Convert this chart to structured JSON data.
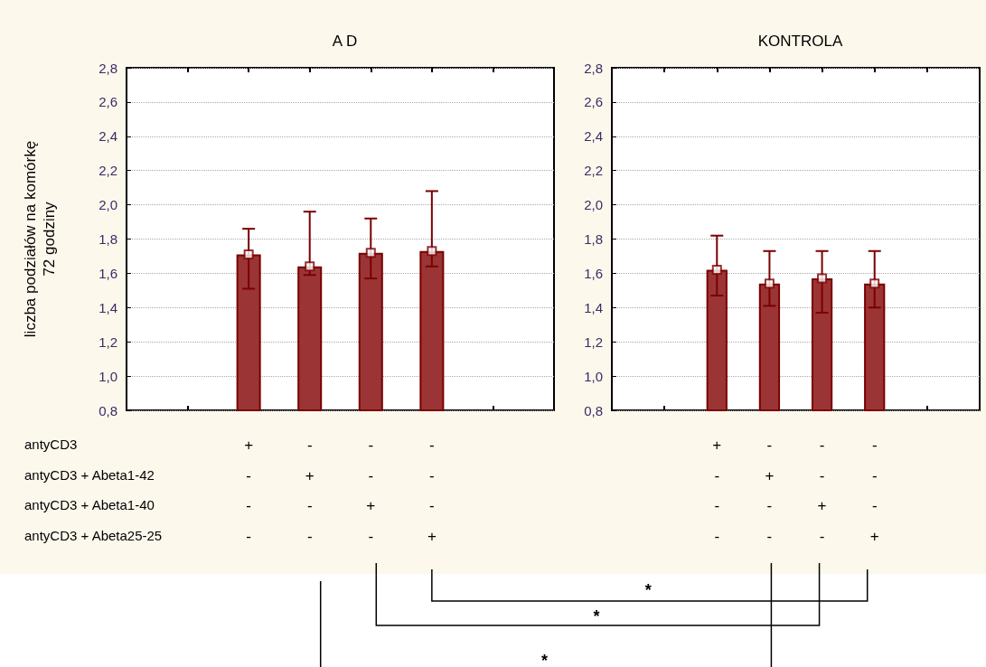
{
  "chart_data": [
    {
      "type": "bar",
      "title": "A D",
      "ylabel": "liczba podziałów na komórkę\n72 godziny",
      "categories": [
        null,
        null,
        "+\n-\n-\n-",
        "-\n+\n-\n-",
        "-\n-\n+\n-",
        "-\n-\n-\n+",
        null,
        null
      ],
      "series": [
        {
          "color": "#9b3535",
          "values": [
            null,
            null,
            1.71,
            1.64,
            1.72,
            1.73,
            null,
            null
          ],
          "errors": [
            null,
            null,
            [
              1.51,
              1.86
            ],
            [
              1.59,
              1.96
            ],
            [
              1.57,
              1.92
            ],
            [
              1.64,
              2.08
            ],
            null,
            null
          ]
        },
        {
          "type": "scatter",
          "color": "#ffffff",
          "marker": "square",
          "x": [
            "+\n-\n-\n-",
            "-\n+\n-\n-",
            "-\n-\n+\n-",
            "-\n-\n-\n+"
          ],
          "values": [
            1.71,
            1.64,
            1.72,
            1.73
          ]
        }
      ],
      "ylim": [
        0.8,
        2.8
      ],
      "yticks": [
        {
          "value": 0.8,
          "label": "0,8"
        },
        {
          "value": 1.0,
          "label": "1,0"
        },
        {
          "value": 1.2,
          "label": "1,2"
        },
        {
          "value": 1.4,
          "label": "1,4"
        },
        {
          "value": 1.6,
          "label": "1,6"
        },
        {
          "value": 1.8,
          "label": "1,8"
        },
        {
          "value": 2.0,
          "label": "2,0"
        },
        {
          "value": 2.2,
          "label": "2,2"
        },
        {
          "value": 2.4,
          "label": "2,4"
        },
        {
          "value": 2.6,
          "label": "2,6"
        },
        {
          "value": 2.8,
          "label": "2,8"
        }
      ],
      "grid": "y",
      "annotations": [
        "antyCD3",
        "antyCD3 + Abeta1-42",
        "antyCD3 + Abeta1-40",
        "antyCD3 + Abeta25-25"
      ]
    },
    {
      "type": "bar",
      "title": "KONTROLA",
      "categories": [
        null,
        null,
        "+\n-\n-\n-",
        "-\n+\n-\n-",
        "-\n-\n+\n-",
        "-\n-\n-\n+",
        null,
        null
      ],
      "series": [
        {
          "color": "#9b3535",
          "values": [
            null,
            null,
            1.62,
            1.54,
            1.57,
            1.54,
            null,
            null
          ],
          "errors": [
            null,
            null,
            [
              1.47,
              1.82
            ],
            [
              1.41,
              1.73
            ],
            [
              1.37,
              1.73
            ],
            [
              1.4,
              1.73
            ],
            null,
            null
          ]
        },
        {
          "type": "scatter",
          "color": "#ffffff",
          "marker": "square",
          "x": [
            "+\n-\n-\n-",
            "-\n+\n-\n-",
            "-\n-\n+\n-",
            "-\n-\n-\n+"
          ],
          "values": [
            1.62,
            1.54,
            1.57,
            1.54
          ]
        }
      ],
      "ylim": [
        0.8,
        2.8
      ],
      "yticks": [
        {
          "value": 0.8,
          "label": "0,8"
        },
        {
          "value": 1.0,
          "label": "1,0"
        },
        {
          "value": 1.2,
          "label": "1,2"
        },
        {
          "value": 1.4,
          "label": "1,4"
        },
        {
          "value": 1.6,
          "label": "1,6"
        },
        {
          "value": 1.8,
          "label": "1,8"
        },
        {
          "value": 2.0,
          "label": "2,0"
        },
        {
          "value": 2.2,
          "label": "2,2"
        },
        {
          "value": 2.4,
          "label": "2,4"
        },
        {
          "value": 2.6,
          "label": "2,6"
        },
        {
          "value": 2.8,
          "label": "2,8"
        }
      ],
      "grid": "y",
      "annotations": [
        "*",
        "*",
        "*"
      ]
    }
  ]
}
